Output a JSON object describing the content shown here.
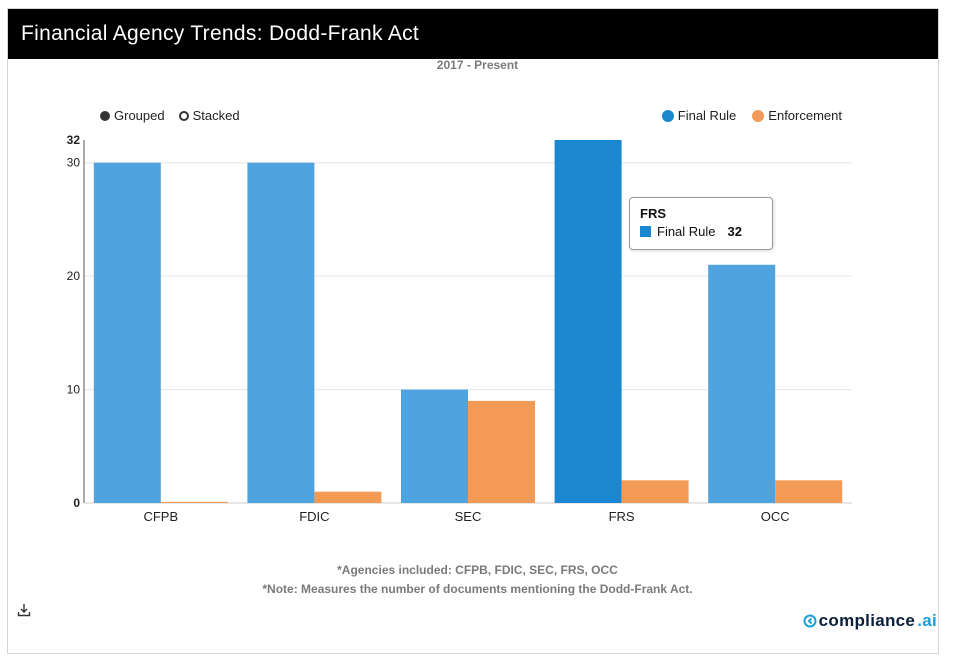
{
  "header": {
    "title": "Financial Agency Trends: Dodd-Frank Act"
  },
  "subtitle": "2017 - Present",
  "view_toggle": {
    "grouped_label": "Grouped",
    "stacked_label": "Stacked",
    "selected": "Grouped"
  },
  "legend": [
    {
      "name": "Final Rule",
      "color": "#4fa3de"
    },
    {
      "name": "Enforcement",
      "color": "#f39a56"
    }
  ],
  "colors": {
    "final_rule": "#4fa3de",
    "final_rule_hover": "#1a87d0",
    "enforcement": "#f39a56",
    "grid": "#e6e6e6",
    "axis": "#333333"
  },
  "chart_data": {
    "type": "bar",
    "title": "Financial Agency Trends: Dodd-Frank Act",
    "subtitle": "2017 - Present",
    "categories": [
      "CFPB",
      "FDIC",
      "SEC",
      "FRS",
      "OCC"
    ],
    "series": [
      {
        "name": "Final Rule",
        "values": [
          30,
          30,
          10,
          32,
          21
        ]
      },
      {
        "name": "Enforcement",
        "values": [
          0.1,
          1,
          9,
          2,
          2
        ]
      }
    ],
    "ylim": [
      0,
      32
    ],
    "yticks": [
      0,
      10,
      20,
      30
    ],
    "ymax_label": "32",
    "xlabel": "",
    "ylabel": "",
    "grid": true,
    "legend_position": "top-right",
    "highlight": {
      "category": "FRS",
      "series": "Final Rule"
    }
  },
  "tooltip": {
    "title": "FRS",
    "series": "Final Rule",
    "value": "32"
  },
  "notes": {
    "line1": "*Agencies included: CFPB, FDIC, SEC, FRS, OCC",
    "line2": "*Note: Measures the number of documents mentioning the Dodd-Frank Act."
  },
  "brand": {
    "name": "compliance",
    "suffix": ".ai"
  },
  "download": {
    "icon": "download-icon"
  }
}
